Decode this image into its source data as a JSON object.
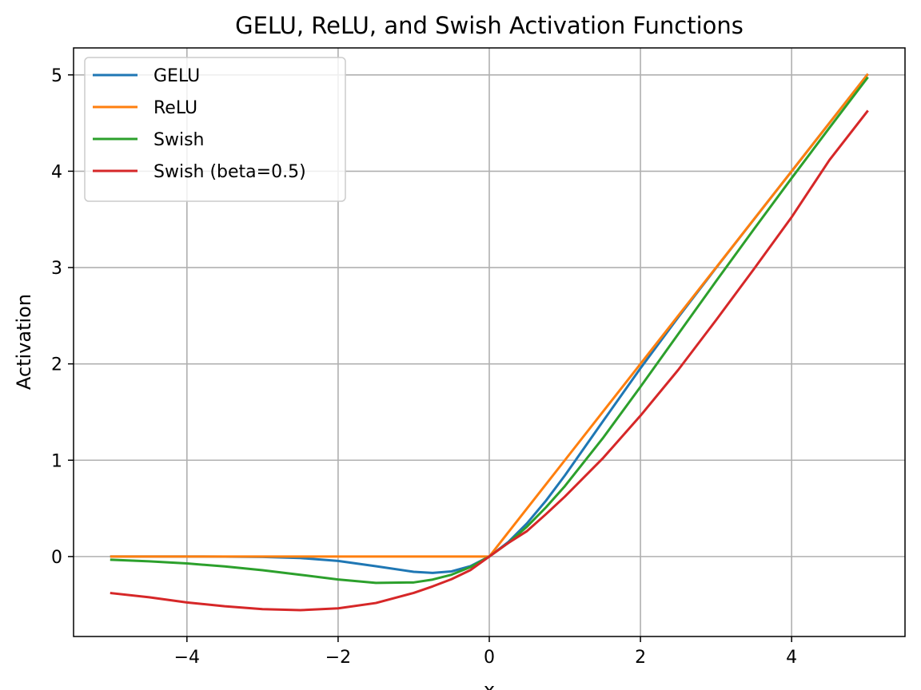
{
  "chart_data": {
    "type": "line",
    "title": "GELU, ReLU, and Swish Activation Functions",
    "xlabel": "x",
    "ylabel": "Activation",
    "xlim": [
      -5.5,
      5.5
    ],
    "ylim": [
      -0.83,
      5.28
    ],
    "xticks": [
      -4,
      -2,
      0,
      2,
      4
    ],
    "yticks": [
      0,
      1,
      2,
      3,
      4,
      5
    ],
    "xtick_labels": [
      "−4",
      "−2",
      "0",
      "2",
      "4"
    ],
    "ytick_labels": [
      "0",
      "1",
      "2",
      "3",
      "4",
      "5"
    ],
    "grid": true,
    "legend_position": "top-left",
    "x": [
      -5,
      -4.5,
      -4,
      -3.5,
      -3,
      -2.5,
      -2,
      -1.5,
      -1,
      -0.75,
      -0.5,
      -0.25,
      0,
      0.25,
      0.5,
      0.75,
      1,
      1.5,
      2,
      2.5,
      3,
      3.5,
      4,
      4.5,
      5
    ],
    "series": [
      {
        "name": "GELU",
        "color": "#1f77b4",
        "values": [
          0,
          0,
          -0.0001,
          -0.0008,
          -0.004,
          -0.0155,
          -0.0455,
          -0.1002,
          -0.1587,
          -0.17,
          -0.1543,
          -0.1003,
          0,
          0.1497,
          0.3457,
          0.58,
          0.8413,
          1.3998,
          1.9545,
          2.4845,
          2.996,
          3.4992,
          3.9999,
          4.5,
          5.0
        ]
      },
      {
        "name": "ReLU",
        "color": "#ff7f0e",
        "values": [
          0,
          0,
          0,
          0,
          0,
          0,
          0,
          0,
          0,
          0,
          0,
          0,
          0,
          0.25,
          0.5,
          0.75,
          1,
          1.5,
          2,
          2.5,
          3,
          3.5,
          4,
          4.5,
          5
        ]
      },
      {
        "name": "Swish",
        "color": "#2ca02c",
        "values": [
          -0.0335,
          -0.0495,
          -0.0719,
          -0.1027,
          -0.1423,
          -0.1896,
          -0.2384,
          -0.2736,
          -0.2689,
          -0.2391,
          -0.1888,
          -0.1098,
          0,
          0.1402,
          0.3112,
          0.5109,
          0.7311,
          1.2264,
          1.7616,
          2.3104,
          2.8577,
          3.3973,
          3.9281,
          4.4505,
          4.9665
        ]
      },
      {
        "name": "Swish (beta=0.5)",
        "color": "#d62728",
        "values": [
          -0.3799,
          -0.4231,
          -0.4768,
          -0.5162,
          -0.5461,
          -0.5564,
          -0.5379,
          -0.4822,
          -0.3775,
          -0.31,
          -0.2351,
          -0.1409,
          0,
          0.1405,
          0.2649,
          0.44,
          0.6225,
          1.0178,
          1.4621,
          1.938,
          2.4539,
          2.9838,
          3.5232,
          4.116,
          4.6201
        ]
      }
    ]
  }
}
